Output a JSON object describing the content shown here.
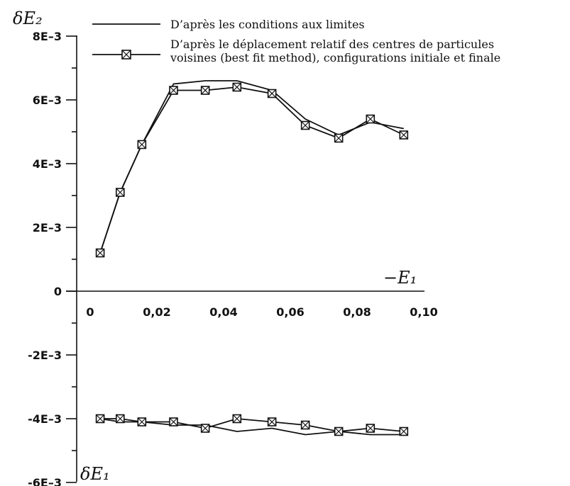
{
  "chart_data": {
    "type": "line",
    "xlabel": "−E₁",
    "ylabel_top": "δE₂",
    "ylabel_bottom": "δE₁",
    "xlim": [
      0,
      0.1
    ],
    "ylim": [
      -0.006,
      0.008
    ],
    "x_ticks": [
      0,
      0.02,
      0.04,
      0.06,
      0.08,
      0.1
    ],
    "x_tick_labels": [
      "0",
      "0,02",
      "0,04",
      "0,06",
      "0,08",
      "0,10"
    ],
    "y_ticks": [
      0.008,
      0.006,
      0.004,
      0.002,
      0,
      -0.002,
      -0.004,
      -0.006
    ],
    "y_tick_labels": [
      "8E–3",
      "6E–3",
      "4E–3",
      "2E–3",
      "0",
      "-2E–3",
      "-4E–3",
      "-6E–3"
    ],
    "grid": false,
    "legend_position": "top",
    "legend": [
      "D’après les conditions aux limites",
      "D’après le déplacement relatif des centres de particules",
      "voisines (best fit method), configurations initiale et finale"
    ],
    "series": [
      {
        "name": "D’après les conditions aux limites",
        "style": "line",
        "x": [
          0.003,
          0.009,
          0.0155,
          0.025,
          0.0345,
          0.044,
          0.0545,
          0.0645,
          0.0745,
          0.084,
          0.094
        ],
        "y": [
          0.0012,
          0.0031,
          0.0046,
          0.0065,
          0.0066,
          0.0066,
          0.0063,
          0.0054,
          0.0049,
          0.0053,
          0.0051
        ]
      },
      {
        "name": "D’après le déplacement relatif des centres de particules voisines (best fit method), configurations initiale et finale",
        "style": "line+square",
        "x": [
          0.003,
          0.009,
          0.0155,
          0.025,
          0.0345,
          0.044,
          0.0545,
          0.0645,
          0.0745,
          0.084,
          0.094
        ],
        "y": [
          0.0012,
          0.0031,
          0.0046,
          0.0063,
          0.0063,
          0.0064,
          0.0062,
          0.0052,
          0.0048,
          0.0054,
          0.0049
        ]
      },
      {
        "name": "D’après les conditions aux limites",
        "style": "line",
        "x": [
          0.003,
          0.009,
          0.0155,
          0.025,
          0.0345,
          0.044,
          0.0545,
          0.0645,
          0.0745,
          0.084,
          0.094
        ],
        "y": [
          -0.004,
          -0.0041,
          -0.0041,
          -0.0042,
          -0.0042,
          -0.0044,
          -0.0043,
          -0.0045,
          -0.0044,
          -0.0045,
          -0.0045
        ]
      },
      {
        "name": "D’après le déplacement relatif des centres de particules voisines (best fit method), configurations initiale et finale",
        "style": "line+square",
        "x": [
          0.003,
          0.009,
          0.0155,
          0.025,
          0.0345,
          0.044,
          0.0545,
          0.0645,
          0.0745,
          0.084,
          0.094
        ],
        "y": [
          -0.004,
          -0.004,
          -0.0041,
          -0.0041,
          -0.0043,
          -0.004,
          -0.0041,
          -0.0042,
          -0.0044,
          -0.0043,
          -0.0044
        ]
      }
    ]
  }
}
